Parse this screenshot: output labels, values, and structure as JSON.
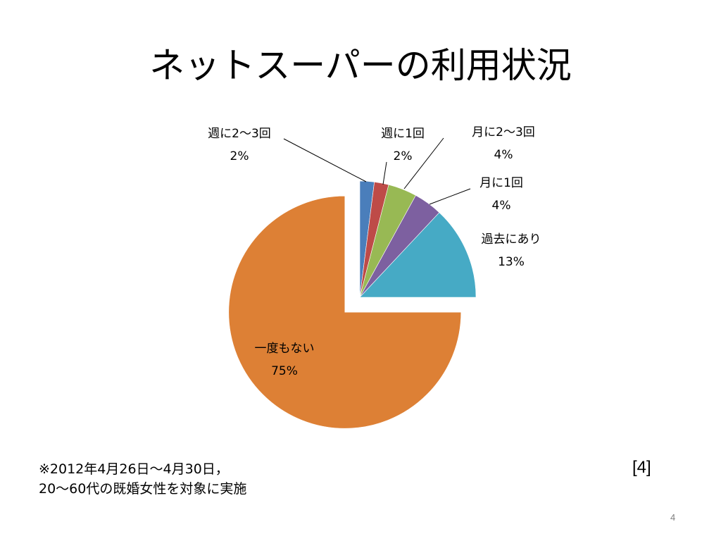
{
  "slide": {
    "title": "ネットスーパーの利用状況",
    "footnote_line1": "※2012年4月26日～4月30日，",
    "footnote_line2": "20～60代の既婚女性を対象に実施",
    "source_ref": "[4]",
    "page_number": "4"
  },
  "chart_data": {
    "type": "pie",
    "slices": [
      {
        "label": "週に2～3回",
        "value": 2,
        "percent_label": "2%",
        "color": "#4a7ebb"
      },
      {
        "label": "週に1回",
        "value": 2,
        "percent_label": "2%",
        "color": "#be4b48"
      },
      {
        "label": "月に2～3回",
        "value": 4,
        "percent_label": "4%",
        "color": "#98b954"
      },
      {
        "label": "月に1回",
        "value": 4,
        "percent_label": "4%",
        "color": "#7d60a0"
      },
      {
        "label": "過去にあり",
        "value": 13,
        "percent_label": "13%",
        "color": "#46aac5"
      },
      {
        "label": "一度もない",
        "value": 75,
        "percent_label": "75%",
        "color": "#dd8035"
      }
    ],
    "exploded_slice": "一度もない",
    "start_angle": "12 o'clock",
    "direction": "clockwise",
    "legend": "none"
  }
}
